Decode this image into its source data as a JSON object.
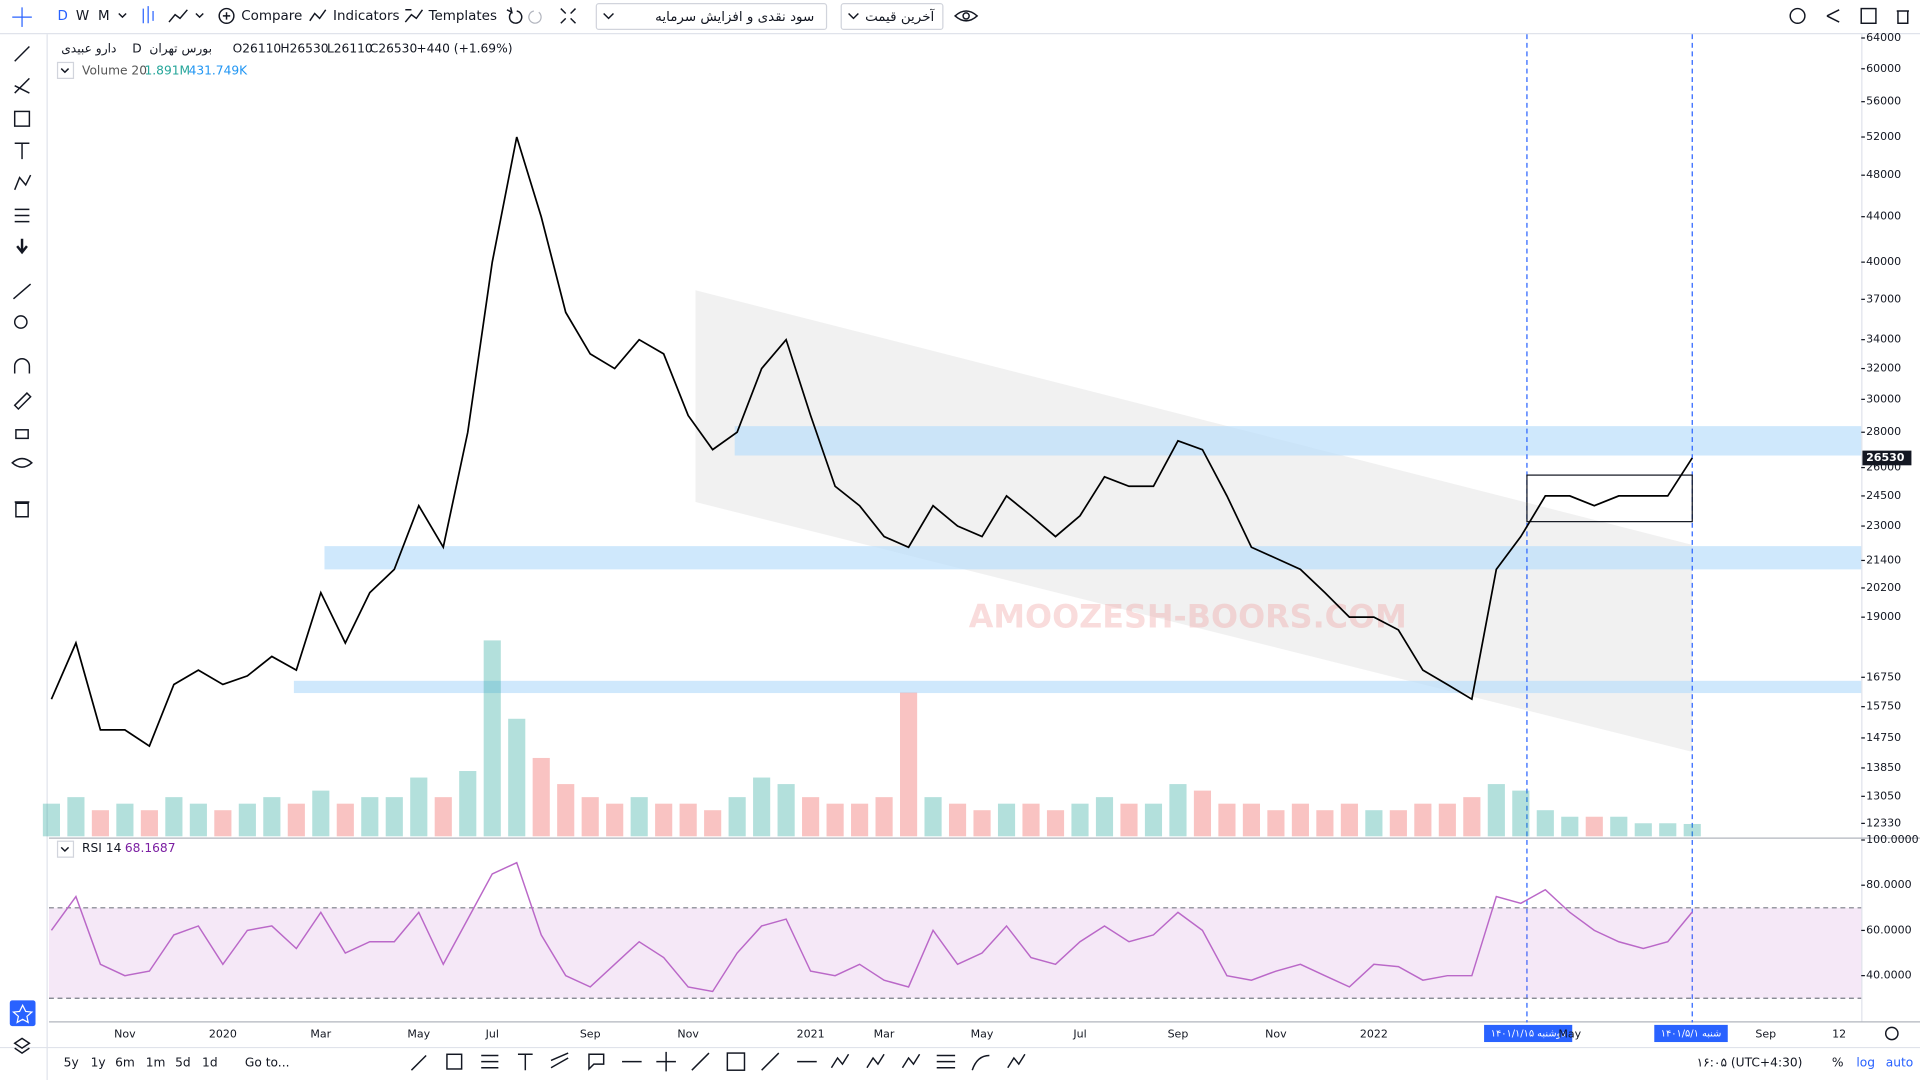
{
  "toolbar": {
    "intervals": [
      "D",
      "W",
      "M"
    ],
    "compare": "Compare",
    "indicators": "Indicators",
    "templates": "Templates",
    "dropdown_1": "سود نقدی و افزایش سرمایه",
    "dropdown_2": "آخرین قیمت"
  },
  "legend": {
    "symbol": "دارو عبیدی",
    "interval": "D",
    "exchange": "بورس تهران",
    "open": "O26110",
    "high": "H26530",
    "low": "L26110",
    "close": "C26530",
    "change": "+440 (+1.69%)",
    "volume_title": "Volume 20",
    "volume_value": "1.891M",
    "volume_ma": "431.749K",
    "rsi_title": "RSI 14",
    "rsi_value": "68.1687"
  },
  "watermark": "AMOOZESH-BOORS.COM",
  "crosshair_dates": [
    "دوشنبه ۱۴۰۱/۱/۱۵",
    "شنبه ۱۴۰۱/۵/۱"
  ],
  "bottom_bar": {
    "ranges": [
      "5y",
      "1y",
      "6m",
      "1m",
      "5d",
      "1d"
    ],
    "goto": "Go to...",
    "time": "۱۶:۰۵ (UTC+4:30)",
    "percent": "%",
    "log": "log",
    "auto": "auto"
  },
  "chart_data": {
    "type": "line",
    "log_scale": true,
    "grid": false,
    "color": "#000000",
    "categories": [
      null,
      null,
      null,
      "Nov",
      null,
      null,
      null,
      "2020",
      null,
      null,
      null,
      "Mar",
      null,
      null,
      null,
      "May",
      null,
      null,
      "Jul",
      null,
      null,
      null,
      "Sep",
      null,
      null,
      null,
      "Nov",
      null,
      null,
      null,
      null,
      "2021",
      null,
      null,
      "Mar",
      null,
      null,
      null,
      "May",
      null,
      null,
      null,
      "Jul",
      null,
      null,
      null,
      "Sep",
      null,
      null,
      null,
      "Nov",
      null,
      null,
      null,
      "2022",
      null,
      null,
      null,
      null,
      null,
      null,
      null,
      "May",
      null,
      null,
      null,
      null,
      null,
      null,
      null,
      "Sep",
      null,
      null,
      "12"
    ],
    "values": [
      16000,
      18000,
      15000,
      15000,
      14500,
      16500,
      17000,
      16500,
      16800,
      17500,
      17000,
      20000,
      18000,
      20000,
      21000,
      24000,
      22000,
      28000,
      40000,
      52000,
      44000,
      36000,
      33000,
      32000,
      34000,
      33000,
      29000,
      27000,
      28000,
      32000,
      34000,
      29000,
      25000,
      24000,
      22500,
      22000,
      24000,
      23000,
      22500,
      24500,
      23500,
      22500,
      23500,
      25500,
      25000,
      25000,
      27500,
      27000,
      24500,
      22000,
      21500,
      21000,
      20000,
      19000,
      19000,
      18500,
      17000,
      16500,
      16000,
      21000,
      22500,
      24500,
      24500,
      24000,
      24500,
      24500,
      24500,
      26530,
      null,
      null,
      null,
      null,
      null,
      null
    ],
    "ylim": [
      12000,
      64500
    ],
    "yticks": [
      64000,
      60000,
      56000,
      52000,
      48000,
      44000,
      40000,
      37000,
      34000,
      32000,
      30000,
      28000,
      26000,
      24500,
      23000,
      21400,
      20200,
      19000,
      16750,
      15750,
      14750,
      13850,
      13050,
      12330
    ],
    "volume": {
      "up_color": "#26a69a",
      "down_color": "#ef5350",
      "values": [
        5,
        6,
        4,
        5,
        4,
        6,
        5,
        4,
        5,
        6,
        5,
        7,
        5,
        6,
        6,
        9,
        6,
        10,
        30,
        18,
        12,
        8,
        6,
        5,
        6,
        5,
        5,
        4,
        6,
        9,
        8,
        6,
        5,
        5,
        6,
        22,
        6,
        5,
        4,
        5,
        5,
        4,
        5,
        6,
        5,
        5,
        8,
        7,
        5,
        5,
        4,
        5,
        4,
        5,
        4,
        4,
        5,
        5,
        6,
        8,
        7,
        4,
        3,
        3,
        3,
        2,
        2,
        1.891,
        null,
        null,
        null,
        null,
        null,
        null
      ]
    },
    "rsi": {
      "color": "#ba68c8",
      "band_color": "#ba68c8",
      "values": [
        60,
        75,
        45,
        40,
        42,
        58,
        62,
        45,
        60,
        62,
        52,
        68,
        50,
        55,
        55,
        68,
        45,
        65,
        85,
        90,
        58,
        40,
        35,
        45,
        55,
        48,
        35,
        33,
        50,
        62,
        65,
        42,
        40,
        45,
        38,
        35,
        60,
        45,
        50,
        62,
        48,
        45,
        55,
        62,
        55,
        58,
        68,
        60,
        40,
        38,
        42,
        45,
        40,
        35,
        45,
        44,
        38,
        40,
        40,
        75,
        72,
        78,
        68,
        60,
        55,
        52,
        55,
        68.1687,
        null,
        null,
        null,
        null,
        null,
        null
      ],
      "ylim": [
        22,
        100
      ],
      "bands": [
        30,
        70
      ],
      "yticks": [
        {
          "value": 100,
          "label": "100.0000"
        },
        {
          "value": 80,
          "label": "80.0000"
        },
        {
          "value": 60,
          "label": "60.0000"
        },
        {
          "value": 40,
          "label": "40.0000"
        }
      ]
    }
  }
}
